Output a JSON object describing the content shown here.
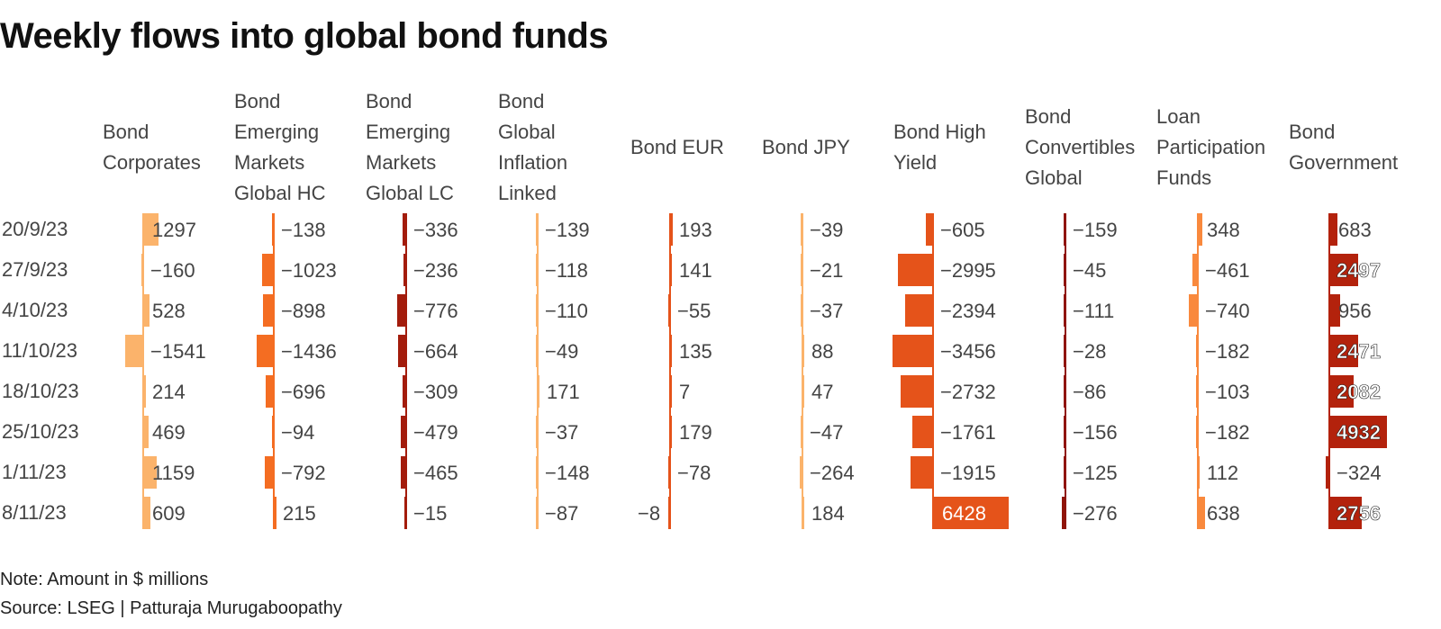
{
  "title": "Weekly flows into global bond funds",
  "note": "Note: Amount in $ millions",
  "source": "Source: LSEG | Patturaja Murugaboopathy",
  "chart_data": {
    "type": "table",
    "rows": [
      "20/9/23",
      "27/9/23",
      "4/10/23",
      "11/10/23",
      "18/10/23",
      "25/10/23",
      "1/11/23",
      "8/11/23"
    ],
    "columns": [
      {
        "name": "Bond Corporates",
        "lines": [
          "Bond",
          "Corporates"
        ],
        "color": "#fbb36b",
        "values": [
          1297,
          -160,
          528,
          -1541,
          214,
          469,
          1159,
          609
        ]
      },
      {
        "name": "Bond Emerging Markets Global HC",
        "lines": [
          "Bond",
          "Emerging",
          "Markets",
          "Global HC"
        ],
        "color": "#f46d22",
        "values": [
          -138,
          -1023,
          -898,
          -1436,
          -696,
          -94,
          -792,
          215
        ]
      },
      {
        "name": "Bond Emerging Markets Global LC",
        "lines": [
          "Bond",
          "Emerging",
          "Markets",
          "Global LC"
        ],
        "color": "#a31c0c",
        "values": [
          -336,
          -236,
          -776,
          -664,
          -309,
          -479,
          -465,
          -15
        ]
      },
      {
        "name": "Bond Global Inflation Linked",
        "lines": [
          "Bond",
          "Global",
          "Inflation",
          "Linked"
        ],
        "color": "#fbb36b",
        "values": [
          -139,
          -118,
          -110,
          -49,
          171,
          -37,
          -148,
          -87
        ]
      },
      {
        "name": "Bond EUR",
        "lines": [
          "Bond EUR"
        ],
        "color": "#e5531a",
        "values": [
          193,
          141,
          -55,
          135,
          7,
          179,
          -78,
          -8
        ]
      },
      {
        "name": "Bond JPY",
        "lines": [
          "Bond JPY"
        ],
        "color": "#fbb36b",
        "values": [
          -39,
          -21,
          -37,
          88,
          47,
          -47,
          -264,
          184
        ]
      },
      {
        "name": "Bond High Yield",
        "lines": [
          "Bond High",
          "Yield"
        ],
        "color": "#e5531a",
        "values": [
          -605,
          -2995,
          -2394,
          -3456,
          -2732,
          -1761,
          -1915,
          6428
        ]
      },
      {
        "name": "Bond Convertibles Global",
        "lines": [
          "Bond",
          "Convertibles",
          "Global"
        ],
        "color": "#8f1409",
        "values": [
          -159,
          -45,
          -111,
          -28,
          -86,
          -156,
          -125,
          -276
        ]
      },
      {
        "name": "Loan Participation Funds",
        "lines": [
          "Loan",
          "Participation",
          "Funds"
        ],
        "color": "#f9893d",
        "values": [
          348,
          -461,
          -740,
          -182,
          -103,
          -182,
          112,
          638
        ]
      },
      {
        "name": "Bond Government",
        "lines": [
          "Bond",
          "Government"
        ],
        "color": "#b3220c",
        "values": [
          683,
          2497,
          956,
          2471,
          2082,
          4932,
          -324,
          2756
        ]
      }
    ]
  }
}
